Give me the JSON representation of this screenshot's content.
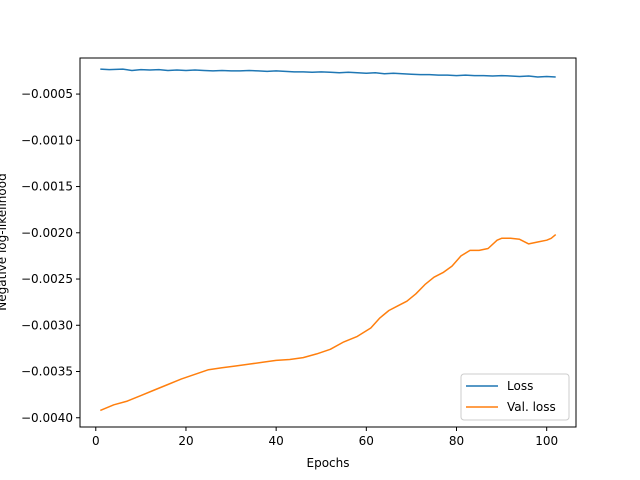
{
  "chart_data": {
    "type": "line",
    "title": "",
    "xlabel": "Epochs",
    "ylabel": "Negative log-likelihood",
    "xlim": [
      -3.5,
      106.5
    ],
    "ylim": [
      -0.0041,
      -0.00011
    ],
    "xticks": [
      0,
      20,
      40,
      60,
      80,
      100
    ],
    "xtick_labels": [
      "0",
      "20",
      "40",
      "60",
      "80",
      "100"
    ],
    "yticks": [
      -0.0005,
      -0.001,
      -0.0015,
      -0.002,
      -0.0025,
      -0.003,
      -0.0035,
      -0.004
    ],
    "ytick_labels": [
      "−0.0005",
      "−0.0010",
      "−0.0015",
      "−0.0020",
      "−0.0025",
      "−0.0030",
      "−0.0035",
      "−0.0040"
    ],
    "grid": false,
    "legend_position": "lower-right",
    "series": [
      {
        "name": "Loss",
        "color": "#1f77b4",
        "x": [
          1,
          3,
          6,
          8,
          10,
          12,
          14,
          16,
          18,
          20,
          22,
          24,
          26,
          28,
          30,
          32,
          34,
          36,
          38,
          40,
          42,
          44,
          46,
          48,
          50,
          52,
          54,
          56,
          58,
          60,
          62,
          64,
          66,
          68,
          70,
          72,
          74,
          76,
          78,
          80,
          82,
          84,
          86,
          88,
          90,
          92,
          94,
          96,
          98,
          100,
          102
        ],
        "y": [
          -0.00023,
          -0.000235,
          -0.00023,
          -0.000245,
          -0.000235,
          -0.00024,
          -0.000235,
          -0.000245,
          -0.00024,
          -0.000245,
          -0.00024,
          -0.000245,
          -0.00025,
          -0.000245,
          -0.00025,
          -0.00025,
          -0.000245,
          -0.00025,
          -0.000255,
          -0.00025,
          -0.000255,
          -0.00026,
          -0.00026,
          -0.000265,
          -0.00026,
          -0.000265,
          -0.00027,
          -0.000265,
          -0.00027,
          -0.000275,
          -0.00027,
          -0.00028,
          -0.000275,
          -0.00028,
          -0.000285,
          -0.00029,
          -0.00029,
          -0.000295,
          -0.000295,
          -0.0003,
          -0.000295,
          -0.0003,
          -0.0003,
          -0.000305,
          -0.0003,
          -0.000305,
          -0.00031,
          -0.000305,
          -0.000315,
          -0.00031,
          -0.000315
        ]
      },
      {
        "name": "Val. loss",
        "color": "#ff7f0e",
        "x": [
          1,
          4,
          7,
          10,
          13,
          16,
          19,
          22,
          25,
          28,
          31,
          34,
          37,
          40,
          43,
          46,
          49,
          52,
          55,
          58,
          61,
          63,
          65,
          67,
          69,
          71,
          73,
          75,
          77,
          79,
          81,
          83,
          85,
          87,
          89,
          90,
          92,
          94,
          96,
          98,
          100,
          101,
          102
        ],
        "y": [
          -0.00392,
          -0.00386,
          -0.00382,
          -0.00376,
          -0.0037,
          -0.00364,
          -0.00358,
          -0.00353,
          -0.00348,
          -0.00346,
          -0.00344,
          -0.00342,
          -0.0034,
          -0.00338,
          -0.00337,
          -0.00335,
          -0.00331,
          -0.00326,
          -0.00318,
          -0.00312,
          -0.00303,
          -0.00292,
          -0.00284,
          -0.00279,
          -0.00274,
          -0.00266,
          -0.00256,
          -0.00248,
          -0.00243,
          -0.00236,
          -0.00225,
          -0.00219,
          -0.00219,
          -0.00217,
          -0.00208,
          -0.00206,
          -0.00206,
          -0.00207,
          -0.00212,
          -0.0021,
          -0.00208,
          -0.00206,
          -0.00202
        ]
      }
    ]
  }
}
